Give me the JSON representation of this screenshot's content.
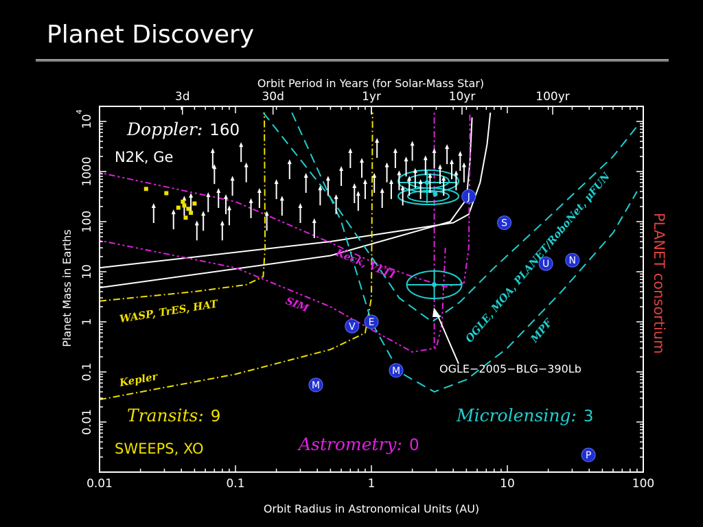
{
  "slide": {
    "title": "Planet Discovery"
  },
  "side_label": "PLANET consortium",
  "overlay": {
    "doppler_survey": "N2K, Ge",
    "transit_survey": "SWEEPS, XO"
  },
  "colors": {
    "doppler": "#ffffff",
    "transits": "#f0e000",
    "astrometry": "#e020e0",
    "microlensing": "#20d0d0",
    "side_label": "#e04040",
    "planet_markers": "#2030d0"
  },
  "chart_data": {
    "type": "scatter",
    "xlabel": "Orbit Radius in Astronomical Units (AU)",
    "ylabel": "Planet Mass in Earths",
    "x2label": "Orbit Period in Years (for Solar-Mass Star)",
    "x_scale": "log",
    "y_scale": "log",
    "xlim": [
      0.01,
      100
    ],
    "ylim": [
      0.001,
      20000
    ],
    "x_ticks": [
      "0.01",
      "0.1",
      "1",
      "10",
      "100"
    ],
    "y_ticks": [
      "0.01",
      "0.1",
      "1",
      "10",
      "100",
      "1000",
      "10^4"
    ],
    "x2_ticks": [
      "3d",
      "30d",
      "1yr",
      "10yr",
      "100yr"
    ],
    "method_labels": [
      {
        "name": "Doppler:",
        "count": "160"
      },
      {
        "name": "Transits:",
        "count": "9"
      },
      {
        "name": "Astrometry:",
        "count": "0"
      },
      {
        "name": "Microlensing:",
        "count": "3"
      }
    ],
    "curve_labels": [
      "WASP, TrES, HAT",
      "Kepler",
      "SIM",
      "Keck, VLTI",
      "OGLE, MOA, PLANET/RoboNet, μFUN",
      "MPF"
    ],
    "annotation": {
      "text": "OGLE−2005−BLG−390Lb",
      "x": 2.9,
      "y": 5.5
    },
    "solar_system": [
      {
        "label": "M",
        "x": 0.39,
        "y": 0.055
      },
      {
        "label": "V",
        "x": 0.72,
        "y": 0.82
      },
      {
        "label": "E",
        "x": 1.0,
        "y": 1.0
      },
      {
        "label": "M",
        "x": 1.52,
        "y": 0.107
      },
      {
        "label": "J",
        "x": 5.2,
        "y": 318
      },
      {
        "label": "S",
        "x": 9.5,
        "y": 95
      },
      {
        "label": "U",
        "x": 19.2,
        "y": 14.5
      },
      {
        "label": "N",
        "x": 30.1,
        "y": 17
      },
      {
        "label": "P",
        "x": 39.5,
        "y": 0.0022
      }
    ],
    "transit_planets": [
      {
        "x": 0.022,
        "y": 450
      },
      {
        "x": 0.031,
        "y": 370
      },
      {
        "x": 0.038,
        "y": 190
      },
      {
        "x": 0.042,
        "y": 210
      },
      {
        "x": 0.045,
        "y": 180
      },
      {
        "x": 0.047,
        "y": 150
      },
      {
        "x": 0.043,
        "y": 120
      },
      {
        "x": 0.05,
        "y": 230
      },
      {
        "x": 0.041,
        "y": 250
      }
    ],
    "doppler_planets": [
      {
        "x": 0.025,
        "y": 200
      },
      {
        "x": 0.035,
        "y": 150
      },
      {
        "x": 0.042,
        "y": 280
      },
      {
        "x": 0.047,
        "y": 320
      },
      {
        "x": 0.052,
        "y": 90
      },
      {
        "x": 0.058,
        "y": 140
      },
      {
        "x": 0.063,
        "y": 330
      },
      {
        "x": 0.068,
        "y": 2500
      },
      {
        "x": 0.07,
        "y": 1200
      },
      {
        "x": 0.075,
        "y": 400
      },
      {
        "x": 0.08,
        "y": 90
      },
      {
        "x": 0.085,
        "y": 300
      },
      {
        "x": 0.09,
        "y": 180
      },
      {
        "x": 0.095,
        "y": 700
      },
      {
        "x": 0.11,
        "y": 3300
      },
      {
        "x": 0.12,
        "y": 1300
      },
      {
        "x": 0.13,
        "y": 250
      },
      {
        "x": 0.15,
        "y": 400
      },
      {
        "x": 0.17,
        "y": 140
      },
      {
        "x": 0.2,
        "y": 600
      },
      {
        "x": 0.22,
        "y": 280
      },
      {
        "x": 0.25,
        "y": 1500
      },
      {
        "x": 0.3,
        "y": 200
      },
      {
        "x": 0.33,
        "y": 800
      },
      {
        "x": 0.38,
        "y": 100
      },
      {
        "x": 0.42,
        "y": 450
      },
      {
        "x": 0.48,
        "y": 700
      },
      {
        "x": 0.55,
        "y": 300
      },
      {
        "x": 0.6,
        "y": 1100
      },
      {
        "x": 0.7,
        "y": 2500
      },
      {
        "x": 0.75,
        "y": 500
      },
      {
        "x": 0.8,
        "y": 350
      },
      {
        "x": 0.85,
        "y": 1600
      },
      {
        "x": 0.9,
        "y": 600
      },
      {
        "x": 1.05,
        "y": 800
      },
      {
        "x": 1.1,
        "y": 4000
      },
      {
        "x": 1.2,
        "y": 400
      },
      {
        "x": 1.3,
        "y": 1300
      },
      {
        "x": 1.4,
        "y": 600
      },
      {
        "x": 1.5,
        "y": 2500
      },
      {
        "x": 1.6,
        "y": 900
      },
      {
        "x": 1.7,
        "y": 450
      },
      {
        "x": 1.8,
        "y": 1700
      },
      {
        "x": 1.9,
        "y": 700
      },
      {
        "x": 2.0,
        "y": 3500
      },
      {
        "x": 2.1,
        "y": 1000
      },
      {
        "x": 2.3,
        "y": 600
      },
      {
        "x": 2.5,
        "y": 1800
      },
      {
        "x": 2.7,
        "y": 800
      },
      {
        "x": 2.9,
        "y": 2500
      },
      {
        "x": 3.2,
        "y": 1200
      },
      {
        "x": 3.4,
        "y": 700
      },
      {
        "x": 3.6,
        "y": 3000
      },
      {
        "x": 3.9,
        "y": 1500
      },
      {
        "x": 4.2,
        "y": 900
      },
      {
        "x": 4.5,
        "y": 2200
      },
      {
        "x": 4.8,
        "y": 1300
      }
    ]
  }
}
